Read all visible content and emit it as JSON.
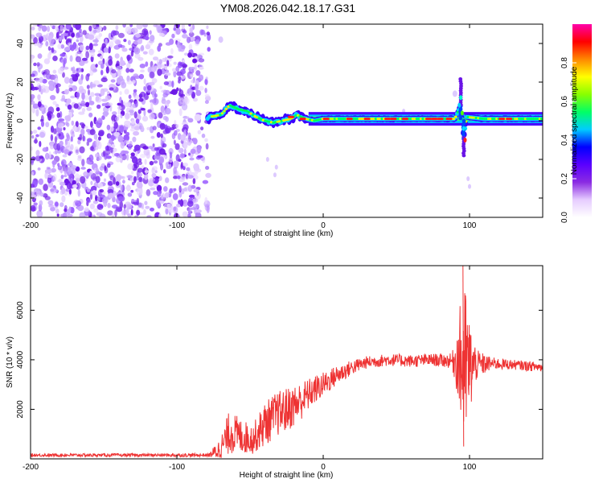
{
  "title": "YM08.2026.042.18.17.G31",
  "chart_data": [
    {
      "type": "heatmap",
      "description_role": "spectrogram",
      "xlabel": "Height of straight line (km)",
      "ylabel": "Frequency (Hz)",
      "xlim": [
        -200,
        150
      ],
      "ylim": [
        -50,
        50
      ],
      "xticks": [
        -200,
        -100,
        0,
        100
      ],
      "xtick_labels": [
        "-200",
        "-100",
        "0",
        "100"
      ],
      "yticks": [
        -40,
        -20,
        0,
        20,
        40
      ],
      "ytick_labels": [
        "-40",
        "-20",
        "0",
        "20",
        "40"
      ],
      "colorbar": {
        "label": "Normalized spectral amplitude",
        "range": [
          0,
          1
        ],
        "ticks": [
          0,
          0.2,
          0.4,
          0.6,
          0.8
        ],
        "tick_labels": [
          "0.0",
          "0.2",
          "0.4",
          "0.6",
          "0.8"
        ],
        "colors": [
          "#ffffff",
          "#e6ccff",
          "#8a2be2",
          "#5a00ff",
          "#0000ff",
          "#00ccff",
          "#00ff66",
          "#88ff00",
          "#ffff00",
          "#ff8800",
          "#ff0000",
          "#ff00aa"
        ]
      },
      "noise_region_x": [
        -200,
        -78
      ],
      "signal_trace": [
        {
          "x": -78,
          "y": 2
        },
        {
          "x": -70,
          "y": 3
        },
        {
          "x": -64,
          "y": 8
        },
        {
          "x": -58,
          "y": 6
        },
        {
          "x": -52,
          "y": 5
        },
        {
          "x": -46,
          "y": 2
        },
        {
          "x": -40,
          "y": 0
        },
        {
          "x": -34,
          "y": -1
        },
        {
          "x": -28,
          "y": 0
        },
        {
          "x": -22,
          "y": 1
        },
        {
          "x": -18,
          "y": 3
        },
        {
          "x": -12,
          "y": 1
        },
        {
          "x": -6,
          "y": 0
        },
        {
          "x": 0,
          "y": 1
        },
        {
          "x": 20,
          "y": 1
        },
        {
          "x": 40,
          "y": 1
        },
        {
          "x": 60,
          "y": 1
        },
        {
          "x": 80,
          "y": 1
        },
        {
          "x": 90,
          "y": 1
        },
        {
          "x": 94,
          "y": 8
        },
        {
          "x": 96,
          "y": -10
        },
        {
          "x": 98,
          "y": 2
        },
        {
          "x": 110,
          "y": 1
        },
        {
          "x": 130,
          "y": 1
        },
        {
          "x": 150,
          "y": 1
        }
      ]
    },
    {
      "type": "line",
      "xlabel": "Height of straight line (km)",
      "ylabel": "SNR (10 * v/v)",
      "xlim": [
        -200,
        150
      ],
      "ylim": [
        0,
        7800
      ],
      "xticks": [
        -200,
        -100,
        0,
        100
      ],
      "xtick_labels": [
        "-200",
        "-100",
        "0",
        "100"
      ],
      "yticks": [
        2000,
        4000,
        6000
      ],
      "ytick_labels": [
        "2000",
        "4000",
        "6000"
      ],
      "color": "#ee3333",
      "series": [
        {
          "name": "SNR",
          "envelope": [
            {
              "x": -200,
              "mean": 150,
              "amp": 60
            },
            {
              "x": -78,
              "mean": 150,
              "amp": 70
            },
            {
              "x": -70,
              "mean": 400,
              "amp": 500
            },
            {
              "x": -64,
              "mean": 1100,
              "amp": 900
            },
            {
              "x": -56,
              "mean": 900,
              "amp": 700
            },
            {
              "x": -48,
              "mean": 800,
              "amp": 600
            },
            {
              "x": -40,
              "mean": 1400,
              "amp": 900
            },
            {
              "x": -32,
              "mean": 1800,
              "amp": 900
            },
            {
              "x": -24,
              "mean": 2000,
              "amp": 900
            },
            {
              "x": -16,
              "mean": 2300,
              "amp": 800
            },
            {
              "x": -8,
              "mean": 2700,
              "amp": 600
            },
            {
              "x": 0,
              "mean": 3000,
              "amp": 500
            },
            {
              "x": 10,
              "mean": 3400,
              "amp": 400
            },
            {
              "x": 20,
              "mean": 3700,
              "amp": 300
            },
            {
              "x": 30,
              "mean": 3900,
              "amp": 250
            },
            {
              "x": 45,
              "mean": 4000,
              "amp": 250
            },
            {
              "x": 60,
              "mean": 3950,
              "amp": 250
            },
            {
              "x": 75,
              "mean": 4000,
              "amp": 250
            },
            {
              "x": 88,
              "mean": 3950,
              "amp": 300
            },
            {
              "x": 92,
              "mean": 4000,
              "amp": 1500
            },
            {
              "x": 96,
              "mean": 3800,
              "amp": 3600
            },
            {
              "x": 100,
              "mean": 3700,
              "amp": 2000
            },
            {
              "x": 105,
              "mean": 3800,
              "amp": 600
            },
            {
              "x": 115,
              "mean": 3850,
              "amp": 250
            },
            {
              "x": 130,
              "mean": 3800,
              "amp": 200
            },
            {
              "x": 150,
              "mean": 3700,
              "amp": 200
            }
          ]
        }
      ]
    }
  ]
}
